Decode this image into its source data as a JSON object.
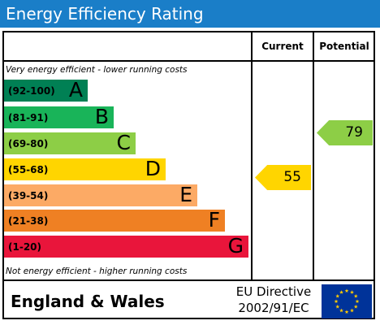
{
  "title": "Energy Efficiency Rating",
  "columns": {
    "current": "Current",
    "potential": "Potential"
  },
  "notes": {
    "top": "Very energy efficient - lower running costs",
    "bottom": "Not energy efficient - higher running costs"
  },
  "bands": [
    {
      "range": "(92-100)",
      "letter": "A",
      "color": "#008054"
    },
    {
      "range": "(81-91)",
      "letter": "B",
      "color": "#19b459"
    },
    {
      "range": "(69-80)",
      "letter": "C",
      "color": "#8dce46"
    },
    {
      "range": "(55-68)",
      "letter": "D",
      "color": "#ffd500"
    },
    {
      "range": "(39-54)",
      "letter": "E",
      "color": "#fcaa65"
    },
    {
      "range": "(21-38)",
      "letter": "F",
      "color": "#ef8023"
    },
    {
      "range": "(1-20)",
      "letter": "G",
      "color": "#e9153b"
    }
  ],
  "ratings": {
    "current": {
      "value": "55",
      "color": "#ffd500"
    },
    "potential": {
      "value": "79",
      "color": "#8dce46"
    }
  },
  "footer": {
    "region": "England & Wales",
    "directive_line1": "EU Directive",
    "directive_line2": "2002/91/EC"
  },
  "colors": {
    "title_bar": "#1a7ec8",
    "eu_flag_blue": "#003399",
    "eu_flag_stars": "#ffcc00"
  }
}
